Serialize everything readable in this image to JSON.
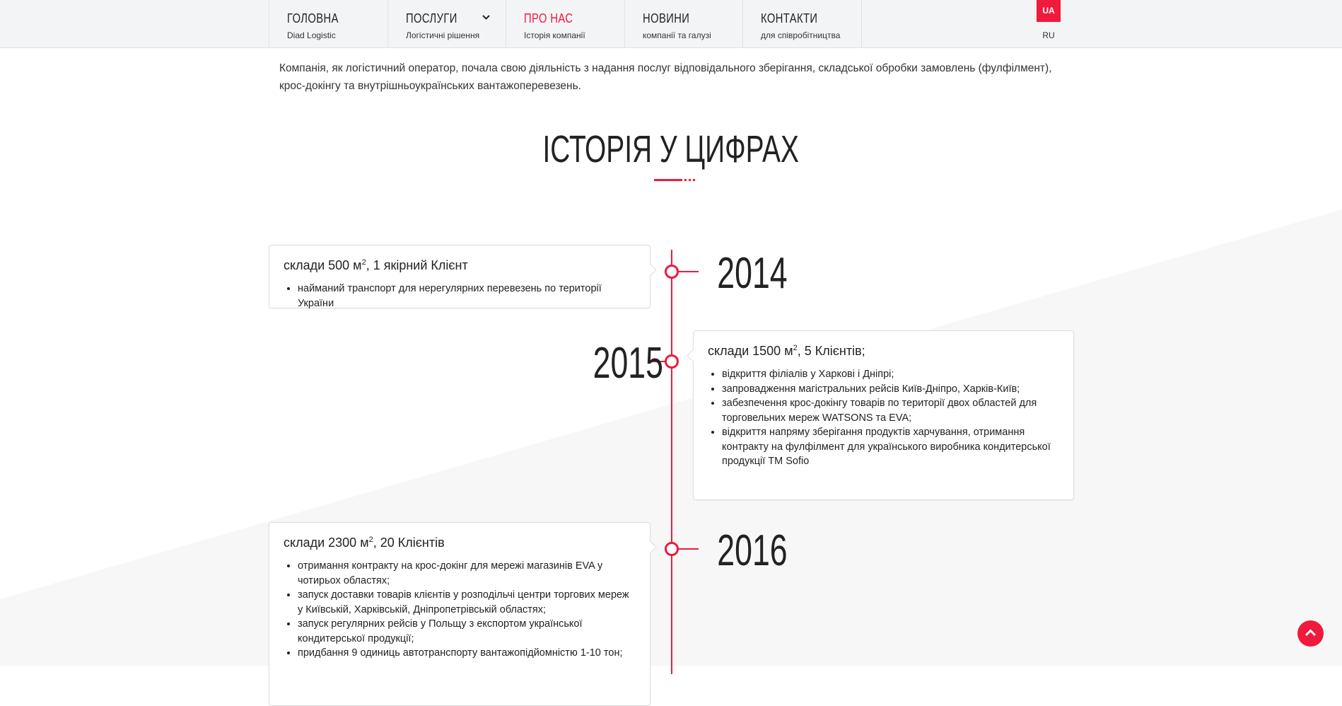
{
  "colors": {
    "accent": "#ef1a3c",
    "nav_bg": "#f3f4f6",
    "bg_shape": "#f7f7f8"
  },
  "nav": {
    "items": [
      {
        "title": "ГОЛОВНА",
        "subtitle": "Diad Logistic"
      },
      {
        "title": "ПОСЛУГИ",
        "subtitle": "Логістичні рішення",
        "icon": "chevron-down-icon"
      },
      {
        "title": "ПРО НАС",
        "subtitle": "Історія компанії",
        "active": true
      },
      {
        "title": "НОВИНИ",
        "subtitle": "компанії та галузі"
      },
      {
        "title": "КОНТАКТИ",
        "subtitle": "для співробітництва"
      }
    ],
    "languages": {
      "active": "UA",
      "other": "RU"
    }
  },
  "intro": "Компанія, як логістичний оператор, почала свою діяльність з надання послуг відповідального зберігання, складської обробки замовлень (фулфілмент), крос-докінгу та внутрішньоукраїнських вантажоперевезень.",
  "section_title": "ІСТОРІЯ У ЦИФРАХ",
  "timeline": [
    {
      "year": "2014",
      "heading": "склади 500 м",
      "sup": "2",
      "heading_rest": ", 1 якірний Клієнт",
      "items": [
        "найманий транспорт для нерегулярних перевезень по території України"
      ]
    },
    {
      "year": "2015",
      "heading": "склади 1500 м",
      "sup": "2",
      "heading_rest": ", 5 Клієнтів;",
      "items": [
        "відкриття філіалів у Харкові і Дніпрі;",
        "запровадження магістральних рейсів Київ-Дніпро, Харків-Київ;",
        "забезпечення крос-докінгу товарів по території двох областей для торговельних мереж WATSONS та EVA;",
        "відкриття напряму зберігання продуктів харчування, отримання контракту на фулфілмент для українського виробника кондитерської продукції ТМ Sofio"
      ]
    },
    {
      "year": "2016",
      "heading": "склади 2300 м",
      "sup": "2",
      "heading_rest": ", 20 Клієнтів",
      "items": [
        "отримання контракту на крос-докінг для мережі магазинів EVA у чотирьох областях;",
        "запуск доставки товарів клієнтів у розподільчі центри торгових мереж у Київській, Харківській, Дніпропетрівській областях;",
        "запуск регулярних рейсів у Польщу з експортом української кондитерської продукції;",
        "придбання 9 одиниць автотранспорту вантажопідйомністю 1-10 тон;"
      ]
    }
  ],
  "scroll_top_icon": "chevron-up-icon"
}
